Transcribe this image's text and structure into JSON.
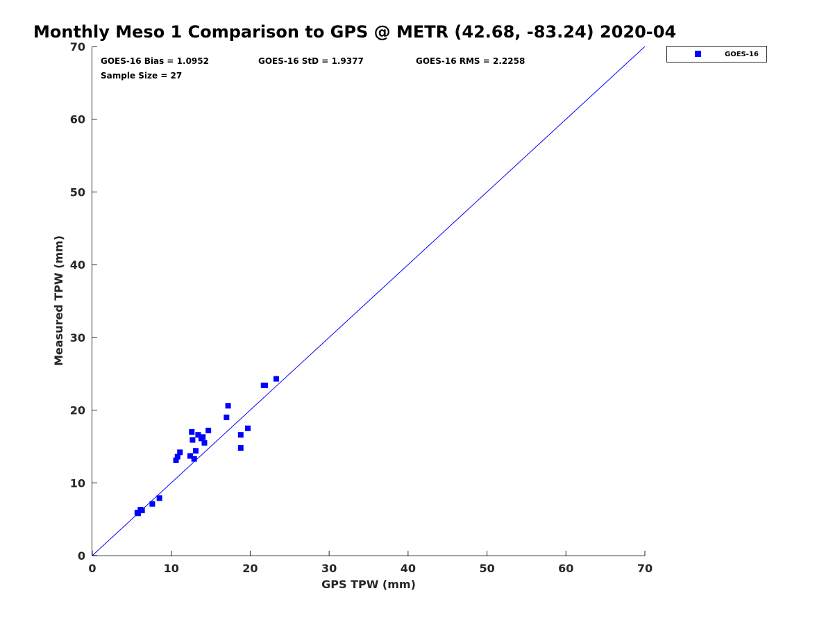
{
  "chart_data": {
    "type": "scatter",
    "title": "Monthly Meso 1 Comparison to GPS @ METR (42.68, -83.24) 2020-04",
    "xlabel": "GPS TPW (mm)",
    "ylabel": "Measured TPW (mm)",
    "xlim": [
      0,
      70
    ],
    "ylim": [
      0,
      70
    ],
    "xticks": [
      "0",
      "10",
      "20",
      "30",
      "40",
      "50",
      "60",
      "70"
    ],
    "yticks": [
      "0",
      "10",
      "20",
      "30",
      "40",
      "50",
      "60",
      "70"
    ],
    "grid": false,
    "legend_position": "top-right outside",
    "reference_line": {
      "from": [
        0,
        0
      ],
      "to": [
        70,
        70
      ],
      "color": "#0000ff"
    },
    "stats": {
      "bias": "GOES-16 Bias = 1.0952",
      "std": "GOES-16 StD = 1.9377",
      "rms": "GOES-16 RMS = 2.2258",
      "sample": "Sample Size = 27"
    },
    "series": [
      {
        "name": "GOES-16",
        "color": "#0000ff",
        "marker": "square",
        "points": [
          [
            5.7,
            5.9
          ],
          [
            5.8,
            5.8
          ],
          [
            6.1,
            6.3
          ],
          [
            6.3,
            6.2
          ],
          [
            7.6,
            7.1
          ],
          [
            8.5,
            7.9
          ],
          [
            10.6,
            13.1
          ],
          [
            10.8,
            13.6
          ],
          [
            11.1,
            14.2
          ],
          [
            12.4,
            13.7
          ],
          [
            12.6,
            17.0
          ],
          [
            12.7,
            15.9
          ],
          [
            12.9,
            13.3
          ],
          [
            13.1,
            14.4
          ],
          [
            13.4,
            16.6
          ],
          [
            13.8,
            16.1
          ],
          [
            14.0,
            16.3
          ],
          [
            14.2,
            15.5
          ],
          [
            14.7,
            17.2
          ],
          [
            17.0,
            19.0
          ],
          [
            17.2,
            20.6
          ],
          [
            18.8,
            16.6
          ],
          [
            18.8,
            14.8
          ],
          [
            19.7,
            17.5
          ],
          [
            21.7,
            23.4
          ],
          [
            21.9,
            23.4
          ],
          [
            23.3,
            24.3
          ]
        ]
      }
    ]
  }
}
